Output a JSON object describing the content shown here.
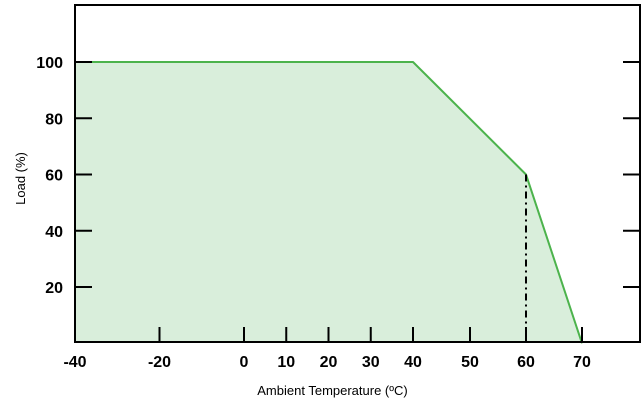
{
  "chart_data": {
    "type": "area",
    "xlabel": "Ambient Temperature (ºC)",
    "ylabel": "Load (%)",
    "xlim": [
      -40,
      80
    ],
    "ylim": [
      0,
      120
    ],
    "x_ticks": [
      -40,
      -20,
      0,
      10,
      20,
      30,
      40,
      50,
      60,
      70
    ],
    "y_ticks": [
      20,
      40,
      60,
      80,
      100
    ],
    "x_tick_labels": [
      "-40",
      "-20",
      "0",
      "10",
      "20",
      "30",
      "40",
      "50",
      "60",
      "70"
    ],
    "y_tick_labels": [
      "20",
      "40",
      "60",
      "80",
      "100"
    ],
    "series": [
      {
        "x": [
          -40,
          40,
          60,
          70
        ],
        "y": [
          100,
          100,
          60,
          0
        ]
      }
    ],
    "reference_lines": [
      {
        "x": 60,
        "y_from": 0,
        "y_to": 60,
        "style": "dash-dot"
      }
    ],
    "colors": {
      "line": "#4cb34c",
      "fill": "#d9eedb",
      "axis": "#000000",
      "reference": "#000000"
    }
  }
}
